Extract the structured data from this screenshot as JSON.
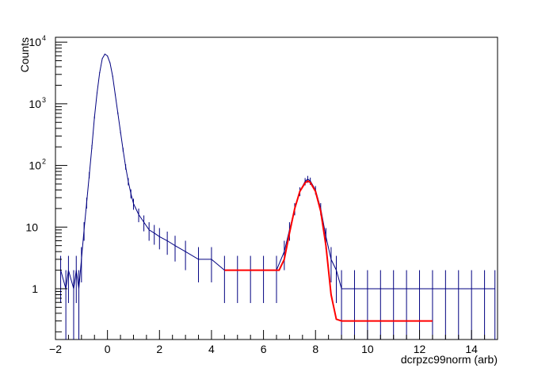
{
  "chart_data": {
    "type": "histogram",
    "title": "",
    "xlabel": "dcrpzc99norm (arb)",
    "ylabel": "Counts",
    "xlim": [
      -2,
      15
    ],
    "ylim": [
      0.15,
      12000
    ],
    "ylog": true,
    "grid": false,
    "legend": "none",
    "x_ticks": [
      -2,
      0,
      2,
      4,
      6,
      8,
      10,
      12,
      14
    ],
    "y_ticks": [
      {
        "value": 1,
        "base": "1",
        "exp": ""
      },
      {
        "value": 10,
        "base": "10",
        "exp": ""
      },
      {
        "value": 100,
        "base": "10",
        "exp": "2"
      },
      {
        "value": 1000,
        "base": "10",
        "exp": "3"
      },
      {
        "value": 10000,
        "base": "10",
        "exp": "4"
      }
    ],
    "series": [
      {
        "kind": "histogram",
        "color": "#000080",
        "points": [
          [
            -1.8,
            2
          ],
          [
            -1.6,
            1
          ],
          [
            -1.5,
            2
          ],
          [
            -1.3,
            1
          ],
          [
            -1.2,
            2
          ],
          [
            -1.1,
            1
          ],
          [
            -1.0,
            3
          ],
          [
            -0.9,
            9
          ],
          [
            -0.8,
            25
          ],
          [
            -0.7,
            70
          ],
          [
            -0.6,
            200
          ],
          [
            -0.5,
            600
          ],
          [
            -0.4,
            1500
          ],
          [
            -0.3,
            3200
          ],
          [
            -0.2,
            5400
          ],
          [
            -0.1,
            6400
          ],
          [
            0.0,
            6000
          ],
          [
            0.1,
            4600
          ],
          [
            0.2,
            2800
          ],
          [
            0.3,
            1400
          ],
          [
            0.4,
            700
          ],
          [
            0.5,
            350
          ],
          [
            0.6,
            180
          ],
          [
            0.7,
            95
          ],
          [
            0.8,
            55
          ],
          [
            0.9,
            35
          ],
          [
            1.0,
            24
          ],
          [
            1.2,
            16
          ],
          [
            1.4,
            12
          ],
          [
            1.6,
            9
          ],
          [
            1.8,
            8
          ],
          [
            2.0,
            7
          ],
          [
            2.3,
            6
          ],
          [
            2.6,
            5
          ],
          [
            3.0,
            4
          ],
          [
            3.5,
            3
          ],
          [
            4.0,
            3
          ],
          [
            4.5,
            2
          ],
          [
            5.0,
            2
          ],
          [
            5.5,
            2
          ],
          [
            6.0,
            2
          ],
          [
            6.5,
            2
          ],
          [
            6.8,
            4
          ],
          [
            7.0,
            9
          ],
          [
            7.2,
            20
          ],
          [
            7.4,
            38
          ],
          [
            7.6,
            55
          ],
          [
            7.7,
            60
          ],
          [
            7.8,
            56
          ],
          [
            8.0,
            40
          ],
          [
            8.2,
            20
          ],
          [
            8.4,
            7
          ],
          [
            8.6,
            3
          ],
          [
            8.8,
            2
          ],
          [
            9.0,
            1
          ],
          [
            9.5,
            1
          ],
          [
            10.0,
            1
          ],
          [
            10.5,
            1
          ],
          [
            11.0,
            1
          ],
          [
            11.5,
            1
          ],
          [
            12.0,
            1
          ],
          [
            12.5,
            1
          ],
          [
            13.0,
            1
          ],
          [
            13.5,
            1
          ],
          [
            14.0,
            1
          ],
          [
            14.5,
            1
          ],
          [
            14.9,
            1
          ]
        ]
      },
      {
        "kind": "fit",
        "color": "#ff0000",
        "points": [
          [
            4.5,
            2
          ],
          [
            6.6,
            2
          ],
          [
            6.8,
            3
          ],
          [
            7.0,
            8
          ],
          [
            7.2,
            20
          ],
          [
            7.4,
            38
          ],
          [
            7.6,
            52
          ],
          [
            7.7,
            56
          ],
          [
            7.8,
            53
          ],
          [
            8.0,
            38
          ],
          [
            8.2,
            18
          ],
          [
            8.4,
            5
          ],
          [
            8.6,
            0.8
          ],
          [
            8.8,
            0.32
          ],
          [
            9.0,
            0.3
          ],
          [
            10.0,
            0.3
          ],
          [
            12.5,
            0.3
          ]
        ]
      }
    ]
  }
}
